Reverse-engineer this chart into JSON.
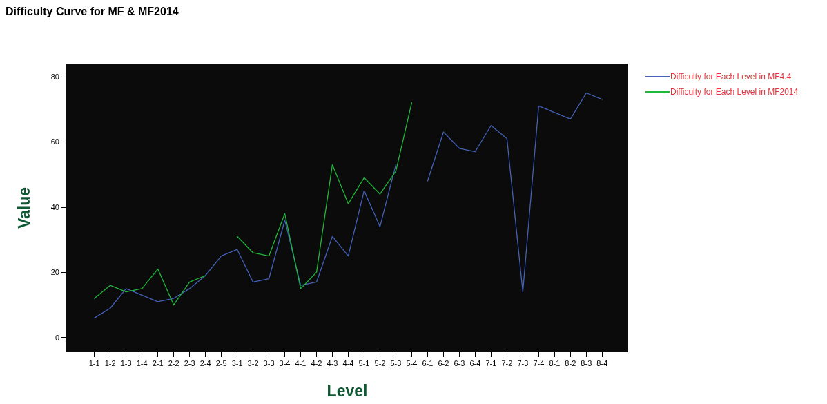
{
  "chart_data": {
    "type": "line",
    "title": "Difficulty Curve for MF & MF2014",
    "xlabel": "Level",
    "ylabel": "Value",
    "categories": [
      "1-1",
      "1-2",
      "1-3",
      "1-4",
      "2-1",
      "2-2",
      "2-3",
      "2-4",
      "2-5",
      "3-1",
      "3-2",
      "3-3",
      "3-4",
      "4-1",
      "4-2",
      "4-3",
      "4-4",
      "5-1",
      "5-2",
      "5-3",
      "5-4",
      "6-1",
      "6-2",
      "6-3",
      "6-4",
      "7-1",
      "7-2",
      "7-3",
      "7-4",
      "8-1",
      "8-2",
      "8-3",
      "8-4"
    ],
    "series": [
      {
        "name": "Difficulty for Each Level in MF4.4",
        "color": "#4361b8",
        "values": [
          6,
          9,
          15,
          13,
          11,
          12,
          15,
          19,
          25,
          27,
          17,
          18,
          36,
          16,
          17,
          31,
          25,
          45,
          34,
          53,
          null,
          48,
          63,
          58,
          57,
          65,
          61,
          14,
          71,
          69,
          67,
          75,
          73
        ]
      },
      {
        "name": "Difficulty for Each Level in MF2014",
        "color": "#1fb83a",
        "values": [
          12,
          16,
          14,
          15,
          21,
          10,
          17,
          19,
          null,
          31,
          26,
          25,
          38,
          15,
          20,
          53,
          41,
          49,
          44,
          51,
          72,
          null,
          null,
          null,
          null,
          null,
          null,
          null,
          null,
          null,
          null,
          null,
          null
        ]
      }
    ],
    "ylim": [
      -4.5,
      84
    ],
    "yticks": [
      0,
      20,
      40,
      60,
      80
    ],
    "grid": false,
    "legend": "top right",
    "marker": "none",
    "line_style": "solid"
  }
}
